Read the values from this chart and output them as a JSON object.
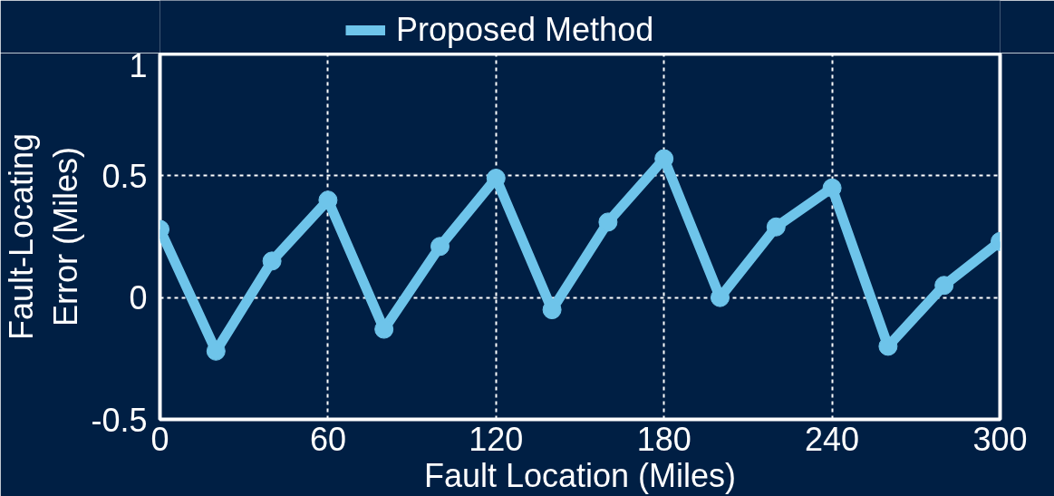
{
  "chart_data": {
    "type": "line",
    "xlabel": "Fault Location (Miles)",
    "ylabel": "Fault-Locating\nError (Miles)",
    "x": [
      0,
      20,
      40,
      60,
      80,
      100,
      120,
      140,
      160,
      180,
      200,
      220,
      240,
      260,
      280,
      300
    ],
    "series": [
      {
        "name": "Proposed Method",
        "color": "#6ec4ea",
        "values": [
          0.28,
          -0.22,
          0.15,
          0.4,
          -0.13,
          0.21,
          0.49,
          -0.05,
          0.31,
          0.57,
          0.0,
          0.29,
          0.45,
          -0.2,
          0.05,
          0.23
        ]
      }
    ],
    "xlim": [
      0,
      300
    ],
    "xticks": [
      0,
      60,
      120,
      180,
      240,
      300
    ],
    "ylim": [
      -0.5,
      1
    ],
    "yticks": [
      -0.5,
      0,
      0.5,
      1
    ],
    "grid": true,
    "legend": "top left",
    "marker": "circle",
    "line_style": "solid"
  }
}
